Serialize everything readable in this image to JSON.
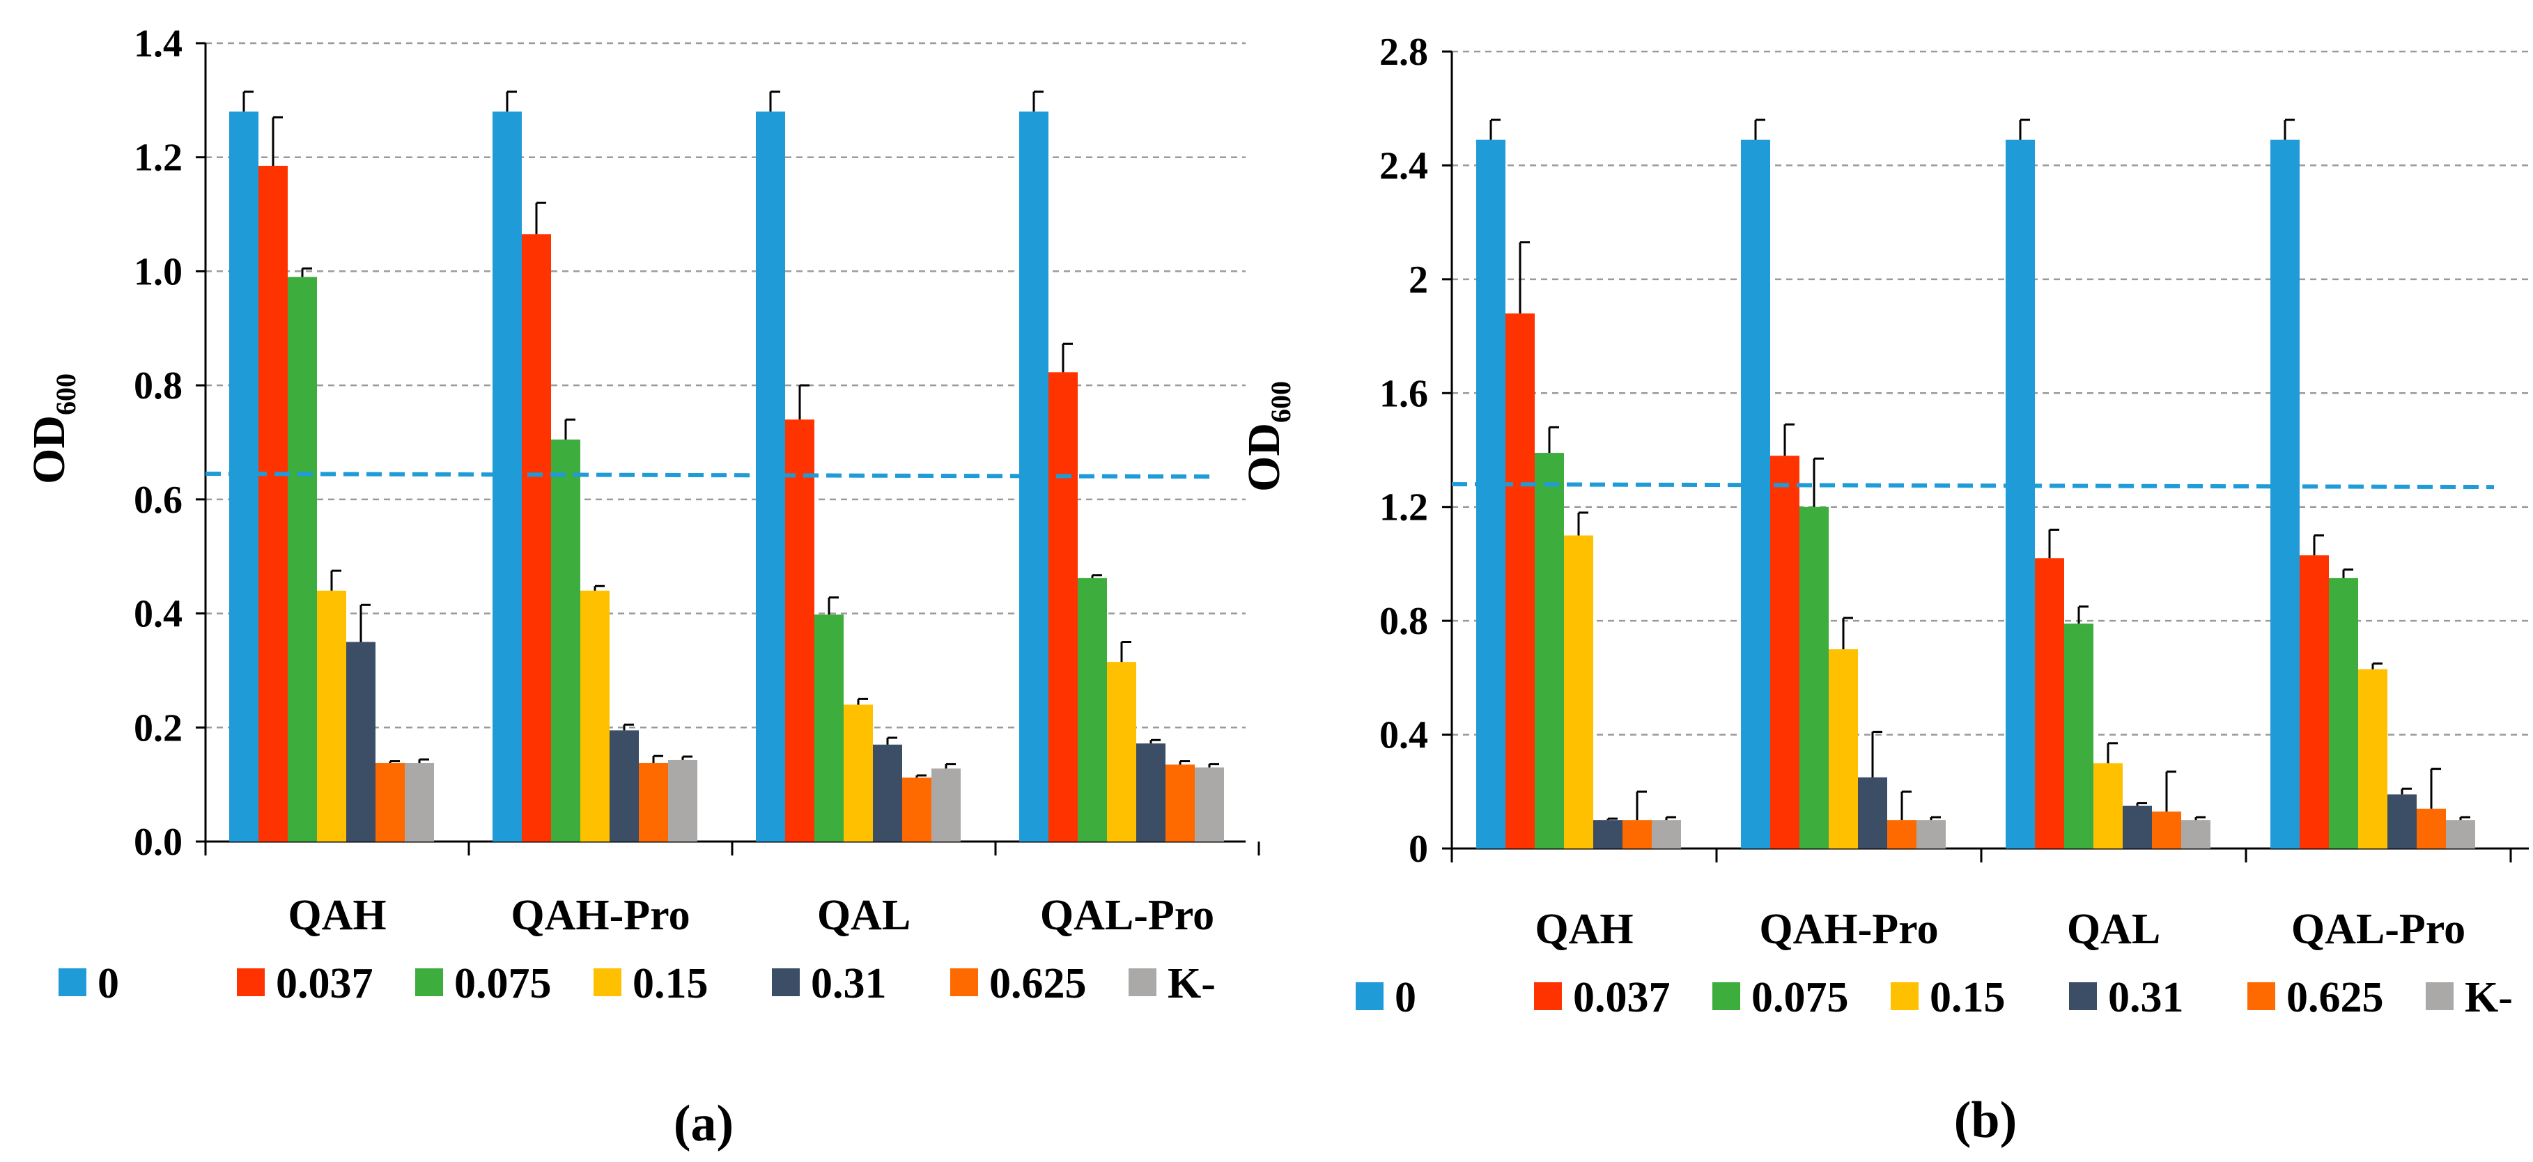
{
  "chart_data": [
    {
      "type": "bar",
      "panel_label": "(a)",
      "ylabel": "OD",
      "ylabel_sub": "600",
      "xlabel": "",
      "ylim": [
        0,
        1.4
      ],
      "yticks": [
        "0.0",
        "0.2",
        "0.4",
        "0.6",
        "0.8",
        "1.0",
        "1.2",
        "1.4"
      ],
      "grid": "horizontal-dashed",
      "legend_position": "bottom",
      "categories": [
        "QAH",
        "QAH-Pro",
        "QAL",
        "QAL-Pro"
      ],
      "series": [
        {
          "name": "0",
          "color": "#1F9BD7",
          "values": [
            1.28,
            1.28,
            1.28,
            1.28
          ],
          "errors": [
            0.035,
            0.035,
            0.035,
            0.035
          ]
        },
        {
          "name": "0.037",
          "color": "#FF3300",
          "values": [
            1.185,
            1.065,
            0.74,
            0.823
          ],
          "errors": [
            0.085,
            0.055,
            0.06,
            0.05
          ]
        },
        {
          "name": "0.075",
          "color": "#3DAE3D",
          "values": [
            0.99,
            0.705,
            0.398,
            0.462
          ],
          "errors": [
            0.015,
            0.035,
            0.03,
            0.005
          ]
        },
        {
          "name": "0.15",
          "color": "#FFC000",
          "values": [
            0.44,
            0.44,
            0.24,
            0.315
          ],
          "errors": [
            0.035,
            0.008,
            0.01,
            0.035
          ]
        },
        {
          "name": "0.31",
          "color": "#3B4E66",
          "values": [
            0.35,
            0.195,
            0.17,
            0.172
          ],
          "errors": [
            0.065,
            0.01,
            0.012,
            0.006
          ]
        },
        {
          "name": "0.625",
          "color": "#FF6A00",
          "values": [
            0.138,
            0.138,
            0.112,
            0.135
          ],
          "errors": [
            0.003,
            0.012,
            0.004,
            0.006
          ]
        },
        {
          "name": "K-",
          "color": "#ABA8A8",
          "values": [
            0.138,
            0.143,
            0.128,
            0.13
          ],
          "errors": [
            0.006,
            0.006,
            0.008,
            0.006
          ]
        }
      ],
      "threshold_line": {
        "color": "#1F9BD7",
        "start": 0.645,
        "end": 0.64
      }
    },
    {
      "type": "bar",
      "panel_label": "(b)",
      "ylabel": "OD",
      "ylabel_sub": "600",
      "xlabel": "",
      "ylim": [
        0,
        2.8
      ],
      "yticks": [
        "0",
        "0.4",
        "0.8",
        "1.2",
        "1.6",
        "2",
        "2.4",
        "2.8"
      ],
      "grid": "horizontal-dashed",
      "legend_position": "bottom",
      "categories": [
        "QAH",
        "QAH-Pro",
        "QAL",
        "QAL-Pro"
      ],
      "series": [
        {
          "name": "0",
          "color": "#1F9BD7",
          "values": [
            2.49,
            2.49,
            2.49,
            2.49
          ],
          "errors": [
            0.07,
            0.07,
            0.07,
            0.07
          ]
        },
        {
          "name": "0.037",
          "color": "#FF3300",
          "values": [
            1.88,
            1.38,
            1.02,
            1.03
          ],
          "errors": [
            0.25,
            0.11,
            0.1,
            0.07
          ]
        },
        {
          "name": "0.075",
          "color": "#3DAE3D",
          "values": [
            1.39,
            1.2,
            0.79,
            0.95
          ],
          "errors": [
            0.09,
            0.17,
            0.06,
            0.03
          ]
        },
        {
          "name": "0.15",
          "color": "#FFC000",
          "values": [
            1.1,
            0.7,
            0.3,
            0.63
          ],
          "errors": [
            0.08,
            0.11,
            0.07,
            0.02
          ]
        },
        {
          "name": "0.31",
          "color": "#3B4E66",
          "values": [
            0.1,
            0.25,
            0.15,
            0.19
          ],
          "errors": [
            0.005,
            0.16,
            0.01,
            0.02
          ]
        },
        {
          "name": "0.625",
          "color": "#FF6A00",
          "values": [
            0.1,
            0.1,
            0.13,
            0.14
          ],
          "errors": [
            0.1,
            0.1,
            0.14,
            0.14
          ]
        },
        {
          "name": "K-",
          "color": "#ABA8A8",
          "values": [
            0.1,
            0.1,
            0.1,
            0.1
          ],
          "errors": [
            0.01,
            0.01,
            0.01,
            0.01
          ]
        }
      ],
      "threshold_line": {
        "color": "#1F9BD7",
        "start": 1.28,
        "end": 1.27
      }
    }
  ]
}
